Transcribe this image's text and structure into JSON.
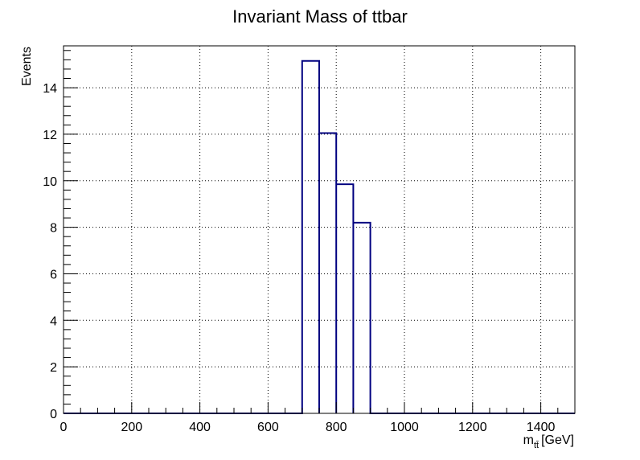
{
  "chart_data": {
    "type": "histogram",
    "title": "Invariant Mass of ttbar",
    "xlabel": "m",
    "xlabel_subscript": "tt̄",
    "xlabel_unit": "[GeV]",
    "ylabel": "Events",
    "xlim": [
      0,
      1500
    ],
    "ylim": [
      0,
      15.8
    ],
    "grid": true,
    "x_ticks": [
      0,
      200,
      400,
      600,
      800,
      1000,
      1200,
      1400
    ],
    "y_ticks": [
      0,
      2,
      4,
      6,
      8,
      10,
      12,
      14
    ],
    "bin_width": 50,
    "bins": [
      {
        "low": 700,
        "high": 750,
        "value": 15.15
      },
      {
        "low": 750,
        "high": 800,
        "value": 12.05
      },
      {
        "low": 800,
        "high": 850,
        "value": 9.85
      },
      {
        "low": 850,
        "high": 900,
        "value": 8.2
      }
    ],
    "line_color": "#000080",
    "grid_color": "#000000"
  }
}
